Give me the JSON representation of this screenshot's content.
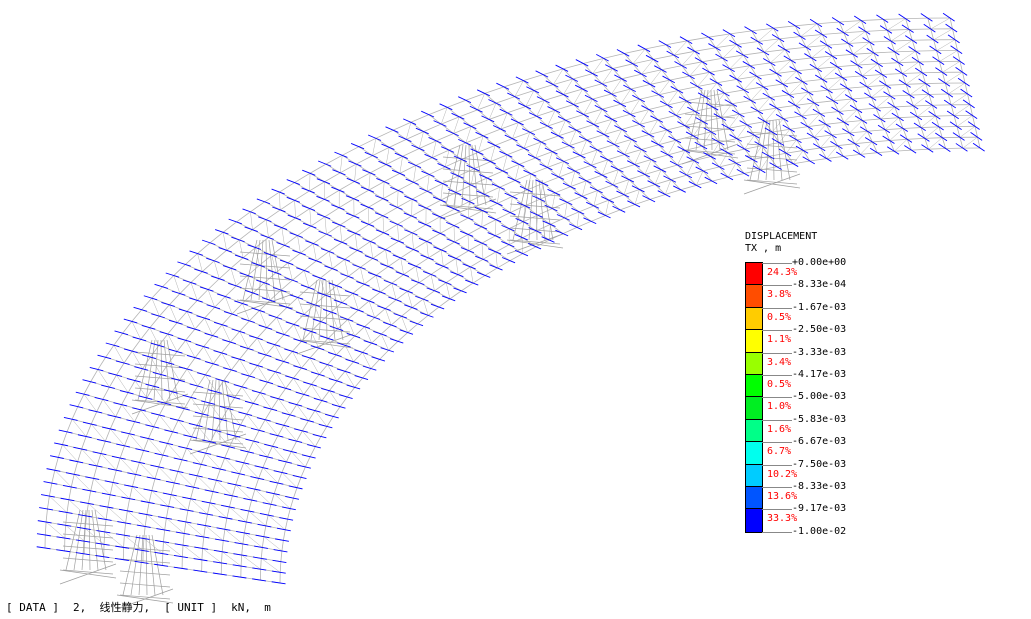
{
  "legend": {
    "title": "DISPLACEMENT",
    "component": "TX , m",
    "ticks": [
      "+0.00e+00",
      "-8.33e-04",
      "-1.67e-03",
      "-2.50e-03",
      "-3.33e-03",
      "-4.17e-03",
      "-5.00e-03",
      "-5.83e-03",
      "-6.67e-03",
      "-7.50e-03",
      "-8.33e-03",
      "-9.17e-03",
      "-1.00e-02"
    ],
    "percents": [
      "24.3%",
      "3.8%",
      "0.5%",
      "1.1%",
      "3.4%",
      "0.5%",
      "1.0%",
      "1.6%",
      "6.7%",
      "10.2%",
      "13.6%",
      "33.3%"
    ],
    "colors": [
      "#ff0000",
      "#ff4d00",
      "#ffcc00",
      "#ffff00",
      "#99ff00",
      "#00ff00",
      "#00ee22",
      "#00ff88",
      "#00ffee",
      "#00ccff",
      "#0055ff",
      "#0000ff"
    ]
  },
  "status": {
    "data_label": "[ DATA ]",
    "data_value": "2,  线性静力,",
    "unit_label": "[ UNIT ]",
    "unit_value": "kN,  m"
  },
  "colors": {
    "mesh": "#b4b4b4",
    "arrow": "#0000ff"
  }
}
